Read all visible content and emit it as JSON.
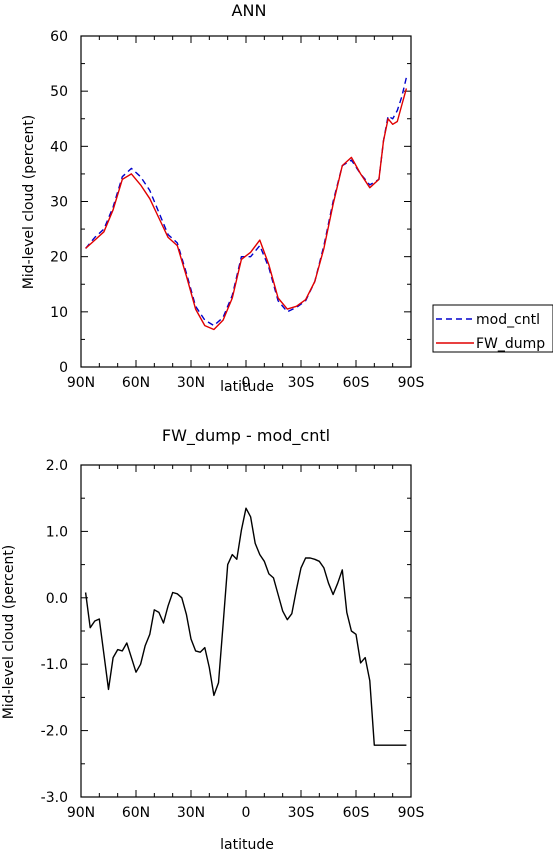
{
  "chart_data": [
    {
      "type": "line",
      "title": "ANN",
      "xlabel": "latitude",
      "ylabel": "Mid-level cloud (percent)",
      "x_tick_labels": [
        "90N",
        "60N",
        "30N",
        "0",
        "30S",
        "60S",
        "90S"
      ],
      "y_tick_labels": [
        "0",
        "10",
        "20",
        "30",
        "40",
        "50",
        "60"
      ],
      "xlim": [
        90,
        -90
      ],
      "ylim": [
        0,
        60
      ],
      "legend_position": "right",
      "series": [
        {
          "name": "mod_cntl",
          "color": "#0000cc",
          "style": "dashed",
          "x": [
            87.5,
            82.5,
            77.5,
            72.5,
            67.5,
            62.5,
            57.5,
            52.5,
            47.5,
            42.5,
            37.5,
            32.5,
            27.5,
            22.5,
            17.5,
            12.5,
            7.5,
            2.5,
            -2.5,
            -7.5,
            -12.5,
            -17.5,
            -22.5,
            -27.5,
            -32.5,
            -37.5,
            -42.5,
            -47.5,
            -52.5,
            -57.5,
            -62.5,
            -67.5,
            -72.5,
            -75,
            -77.5,
            -80,
            -82.5,
            -85,
            -87.5
          ],
          "y": [
            21.5,
            23.5,
            25,
            29,
            34.5,
            36,
            34.5,
            32,
            28,
            24,
            22.5,
            17,
            11,
            8.5,
            7.5,
            9,
            13,
            20,
            20,
            22,
            18,
            12,
            10,
            10.8,
            12,
            15.5,
            22,
            30,
            36.5,
            37.5,
            35,
            33,
            34,
            41,
            45.5,
            45,
            46.5,
            49,
            52.5
          ]
        },
        {
          "name": "FW_dump",
          "color": "#e00000",
          "style": "solid",
          "x": [
            87.5,
            82.5,
            77.5,
            72.5,
            67.5,
            62.5,
            57.5,
            52.5,
            47.5,
            42.5,
            37.5,
            32.5,
            27.5,
            22.5,
            17.5,
            12.5,
            7.5,
            2.5,
            -2.5,
            -7.5,
            -12.5,
            -17.5,
            -22.5,
            -27.5,
            -32.5,
            -37.5,
            -42.5,
            -47.5,
            -52.5,
            -57.5,
            -62.5,
            -67.5,
            -72.5,
            -75,
            -77.5,
            -80,
            -82.5,
            -85,
            -87.5
          ],
          "y": [
            21.5,
            23,
            24.5,
            28.5,
            34,
            35,
            33,
            30.5,
            27,
            23.5,
            22,
            16.5,
            10.5,
            7.5,
            6.8,
            8.5,
            12.5,
            19.5,
            20.8,
            23,
            18.5,
            12.5,
            10.5,
            11,
            12.2,
            15.5,
            21.5,
            29.5,
            36.5,
            38,
            35,
            32.5,
            34,
            41,
            45,
            44,
            44.5,
            47.5,
            50.5
          ]
        }
      ]
    },
    {
      "type": "line",
      "title": "FW_dump - mod_cntl",
      "xlabel": "latitude",
      "ylabel": "Mid-level cloud (percent)",
      "x_tick_labels": [
        "90N",
        "60N",
        "30N",
        "0",
        "30S",
        "60S",
        "90S"
      ],
      "y_tick_labels": [
        "2.0",
        "1.0",
        "0.0",
        "-1.0",
        "-2.0",
        "-3.0"
      ],
      "xlim": [
        90,
        -90
      ],
      "ylim": [
        -3,
        2
      ],
      "series": [
        {
          "color": "#000000",
          "style": "solid",
          "x": [
            87.5,
            85,
            82.5,
            80,
            77.5,
            75,
            72.5,
            70,
            67.5,
            65,
            62.5,
            60,
            57.5,
            55,
            52.5,
            50,
            47.5,
            45,
            42.5,
            40,
            37.5,
            35,
            32.5,
            30,
            27.5,
            25,
            22.5,
            20,
            17.5,
            15,
            12.5,
            10,
            7.5,
            5,
            2.5,
            0,
            -2.5,
            -5,
            -7.5,
            -10,
            -12.5,
            -15,
            -17.5,
            -20,
            -22.5,
            -25,
            -27.5,
            -30,
            -32.5,
            -35,
            -37.5,
            -40,
            -42.5,
            -45,
            -47.5,
            -50,
            -52.5,
            -55,
            -57.5,
            -60,
            -62.5,
            -65,
            -67.5,
            -70,
            -72.5,
            -75,
            -77.5,
            -80,
            -82.5,
            -85,
            -87.5
          ],
          "y": [
            0.08,
            -0.45,
            -0.35,
            -0.32,
            -0.85,
            -1.38,
            -0.9,
            -0.78,
            -0.8,
            -0.68,
            -0.9,
            -1.12,
            -1.0,
            -0.72,
            -0.55,
            -0.18,
            -0.22,
            -0.38,
            -0.12,
            0.08,
            0.06,
            0.0,
            -0.25,
            -0.62,
            -0.8,
            -0.82,
            -0.75,
            -1.05,
            -1.47,
            -1.28,
            -0.4,
            0.5,
            0.65,
            0.58,
            1.02,
            1.35,
            1.22,
            0.82,
            0.65,
            0.55,
            0.36,
            0.3,
            0.05,
            -0.2,
            -0.33,
            -0.24,
            0.12,
            0.45,
            0.6,
            0.6,
            0.58,
            0.55,
            0.45,
            0.22,
            0.05,
            0.22,
            0.42,
            -0.22,
            -0.5,
            -0.55,
            -0.98,
            -0.9,
            -1.25,
            -2.22,
            -2.22,
            -2.22,
            -2.22,
            -2.22,
            -2.22,
            -2.22,
            -2.22
          ]
        }
      ]
    }
  ]
}
